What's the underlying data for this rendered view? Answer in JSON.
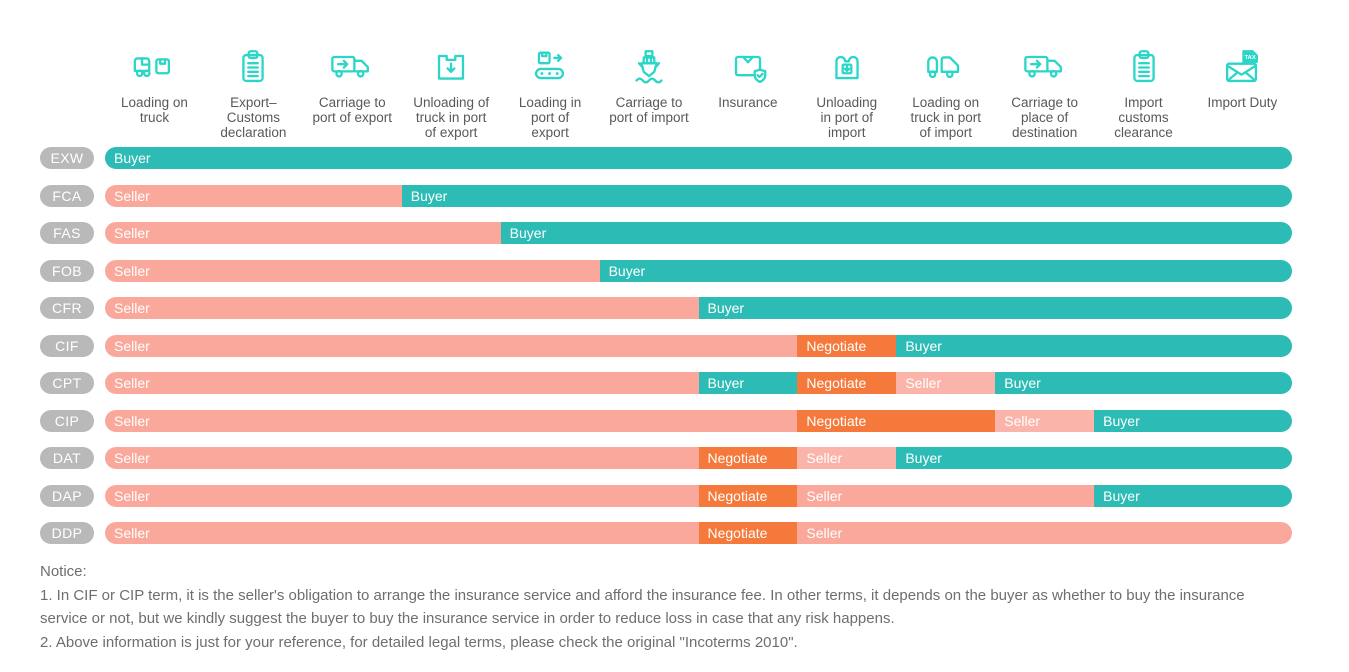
{
  "colors": {
    "buyer": "#2CBCB5",
    "seller": "#F9A89B",
    "seller_light": "#FBB4AA",
    "negotiate": "#F5793B",
    "pill": "#B9B9B9",
    "icon": "#2BD5C7",
    "header_text": "#58595B",
    "notice_text": "#6D6E70",
    "segment_text": "#FFFFFF"
  },
  "columns": [
    {
      "label": "Loading on truck",
      "lines": [
        "Loading on",
        "truck"
      ],
      "icon": "truck-loading-icon"
    },
    {
      "label": "Export–Customs declaration",
      "lines": [
        "Export–",
        "Customs",
        "declaration"
      ],
      "icon": "export-customs-declaration-icon"
    },
    {
      "label": "Carriage to port of export",
      "lines": [
        "Carriage to",
        "port of export"
      ],
      "icon": "carriage-to-port-of-export-icon"
    },
    {
      "label": "Unloading of truck in port of export",
      "lines": [
        "Unloading of",
        "truck in port",
        "of export"
      ],
      "icon": "unloading-truck-port-export-icon"
    },
    {
      "label": "Loading in port of export",
      "lines": [
        "Loading in",
        "port of",
        "export"
      ],
      "icon": "loading-in-port-of-export-icon"
    },
    {
      "label": "Carriage to port of import",
      "lines": [
        "Carriage to",
        "port of import"
      ],
      "icon": "ship-carriage-to-port-of-import-icon"
    },
    {
      "label": "Insurance",
      "lines": [
        "Insurance"
      ],
      "icon": "insurance-icon"
    },
    {
      "label": "Unloading in port of import",
      "lines": [
        "Unloading",
        "in port of",
        "import"
      ],
      "icon": "unloading-in-port-of-import-icon"
    },
    {
      "label": "Loading on truck in port of import",
      "lines": [
        "Loading on",
        "truck in port",
        "of import"
      ],
      "icon": "loading-on-truck-port-import-icon"
    },
    {
      "label": "Carriage to place of destination",
      "lines": [
        "Carriage to",
        "place of",
        "destination"
      ],
      "icon": "carriage-to-destination-icon"
    },
    {
      "label": "Import customs clearance",
      "lines": [
        "Import",
        "customs",
        "clearance"
      ],
      "icon": "import-customs-clearance-icon"
    },
    {
      "label": "Import Duty",
      "lines": [
        "Import Duty"
      ],
      "icon": "import-duty-tax-icon"
    }
  ],
  "rows": [
    {
      "term": "EXW",
      "segments": [
        {
          "label": "Buyer",
          "role": "buyer",
          "start": 0,
          "end": 12
        }
      ]
    },
    {
      "term": "FCA",
      "segments": [
        {
          "label": "Seller",
          "role": "seller",
          "start": 0,
          "end": 3
        },
        {
          "label": "Buyer",
          "role": "buyer",
          "start": 3,
          "end": 12
        }
      ]
    },
    {
      "term": "FAS",
      "segments": [
        {
          "label": "Seller",
          "role": "seller",
          "start": 0,
          "end": 4
        },
        {
          "label": "Buyer",
          "role": "buyer",
          "start": 4,
          "end": 12
        }
      ]
    },
    {
      "term": "FOB",
      "segments": [
        {
          "label": "Seller",
          "role": "seller",
          "start": 0,
          "end": 5
        },
        {
          "label": "Buyer",
          "role": "buyer",
          "start": 5,
          "end": 12
        }
      ]
    },
    {
      "term": "CFR",
      "segments": [
        {
          "label": "Seller",
          "role": "seller",
          "start": 0,
          "end": 6
        },
        {
          "label": "Buyer",
          "role": "buyer",
          "start": 6,
          "end": 12
        }
      ]
    },
    {
      "term": "CIF",
      "segments": [
        {
          "label": "Seller",
          "role": "seller",
          "start": 0,
          "end": 7
        },
        {
          "label": "Negotiate",
          "role": "negotiate",
          "start": 7,
          "end": 8
        },
        {
          "label": "Buyer",
          "role": "buyer",
          "start": 8,
          "end": 12
        }
      ]
    },
    {
      "term": "CPT",
      "segments": [
        {
          "label": "Seller",
          "role": "seller",
          "start": 0,
          "end": 6
        },
        {
          "label": "Buyer",
          "role": "buyer",
          "start": 6,
          "end": 7
        },
        {
          "label": "Negotiate",
          "role": "negotiate",
          "start": 7,
          "end": 8
        },
        {
          "label": "Seller",
          "role": "seller_light",
          "start": 8,
          "end": 9
        },
        {
          "label": "Buyer",
          "role": "buyer",
          "start": 9,
          "end": 12
        }
      ]
    },
    {
      "term": "CIP",
      "segments": [
        {
          "label": "Seller",
          "role": "seller",
          "start": 0,
          "end": 7
        },
        {
          "label": "Negotiate",
          "role": "negotiate",
          "start": 7,
          "end": 9
        },
        {
          "label": "Seller",
          "role": "seller_light",
          "start": 9,
          "end": 10
        },
        {
          "label": "Buyer",
          "role": "buyer",
          "start": 10,
          "end": 12
        }
      ]
    },
    {
      "term": "DAT",
      "segments": [
        {
          "label": "Seller",
          "role": "seller",
          "start": 0,
          "end": 6
        },
        {
          "label": "Negotiate",
          "role": "negotiate",
          "start": 6,
          "end": 7
        },
        {
          "label": "Seller",
          "role": "seller_light",
          "start": 7,
          "end": 8
        },
        {
          "label": "Buyer",
          "role": "buyer",
          "start": 8,
          "end": 12
        }
      ]
    },
    {
      "term": "DAP",
      "segments": [
        {
          "label": "Seller",
          "role": "seller",
          "start": 0,
          "end": 6
        },
        {
          "label": "Negotiate",
          "role": "negotiate",
          "start": 6,
          "end": 7
        },
        {
          "label": "Seller",
          "role": "seller",
          "start": 7,
          "end": 10
        },
        {
          "label": "Buyer",
          "role": "buyer",
          "start": 10,
          "end": 12
        }
      ]
    },
    {
      "term": "DDP",
      "segments": [
        {
          "label": "Seller",
          "role": "seller",
          "start": 0,
          "end": 6
        },
        {
          "label": "Negotiate",
          "role": "negotiate",
          "start": 6,
          "end": 7
        },
        {
          "label": "Seller",
          "role": "seller",
          "start": 7,
          "end": 12
        }
      ]
    }
  ],
  "notice": {
    "title": "Notice:",
    "items": [
      "1. In CIF or CIP term, it is the seller's obligation to arrange the insurance service and afford the insurance fee. In other terms, it depends on the buyer as whether to buy the insurance service or not, but we kindly suggest the buyer to buy the insurance service in order to reduce loss in case that any risk happens.",
      "2. Above information is just for your reference, for detailed legal terms, please check the original \"Incoterms 2010\"."
    ]
  },
  "chart_data": {
    "type": "table",
    "title": "Incoterms 2010 responsibility matrix",
    "categories": [
      "Loading on truck",
      "Export–Customs declaration",
      "Carriage to port of export",
      "Unloading of truck in port of export",
      "Loading in port of export",
      "Carriage to port of import",
      "Insurance",
      "Unloading in port of import",
      "Loading on truck in port of import",
      "Carriage to place of destination",
      "Import customs clearance",
      "Import Duty"
    ],
    "terms": [
      "EXW",
      "FCA",
      "FAS",
      "FOB",
      "CFR",
      "CIF",
      "CPT",
      "CIP",
      "DAT",
      "DAP",
      "DDP"
    ],
    "matrix": [
      [
        "Buyer",
        "Buyer",
        "Buyer",
        "Buyer",
        "Buyer",
        "Buyer",
        "Buyer",
        "Buyer",
        "Buyer",
        "Buyer",
        "Buyer",
        "Buyer"
      ],
      [
        "Seller",
        "Seller",
        "Seller",
        "Buyer",
        "Buyer",
        "Buyer",
        "Buyer",
        "Buyer",
        "Buyer",
        "Buyer",
        "Buyer",
        "Buyer"
      ],
      [
        "Seller",
        "Seller",
        "Seller",
        "Seller",
        "Buyer",
        "Buyer",
        "Buyer",
        "Buyer",
        "Buyer",
        "Buyer",
        "Buyer",
        "Buyer"
      ],
      [
        "Seller",
        "Seller",
        "Seller",
        "Seller",
        "Seller",
        "Buyer",
        "Buyer",
        "Buyer",
        "Buyer",
        "Buyer",
        "Buyer",
        "Buyer"
      ],
      [
        "Seller",
        "Seller",
        "Seller",
        "Seller",
        "Seller",
        "Seller",
        "Buyer",
        "Buyer",
        "Buyer",
        "Buyer",
        "Buyer",
        "Buyer"
      ],
      [
        "Seller",
        "Seller",
        "Seller",
        "Seller",
        "Seller",
        "Seller",
        "Seller",
        "Negotiate",
        "Buyer",
        "Buyer",
        "Buyer",
        "Buyer"
      ],
      [
        "Seller",
        "Seller",
        "Seller",
        "Seller",
        "Seller",
        "Seller",
        "Buyer",
        "Negotiate",
        "Seller",
        "Buyer",
        "Buyer",
        "Buyer"
      ],
      [
        "Seller",
        "Seller",
        "Seller",
        "Seller",
        "Seller",
        "Seller",
        "Seller",
        "Negotiate",
        "Negotiate",
        "Seller",
        "Buyer",
        "Buyer"
      ],
      [
        "Seller",
        "Seller",
        "Seller",
        "Seller",
        "Seller",
        "Seller",
        "Negotiate",
        "Seller",
        "Buyer",
        "Buyer",
        "Buyer",
        "Buyer"
      ],
      [
        "Seller",
        "Seller",
        "Seller",
        "Seller",
        "Seller",
        "Seller",
        "Negotiate",
        "Seller",
        "Seller",
        "Seller",
        "Buyer",
        "Buyer"
      ],
      [
        "Seller",
        "Seller",
        "Seller",
        "Seller",
        "Seller",
        "Seller",
        "Negotiate",
        "Seller",
        "Seller",
        "Seller",
        "Seller",
        "Seller"
      ]
    ],
    "legend_position": "none",
    "grid": false
  }
}
